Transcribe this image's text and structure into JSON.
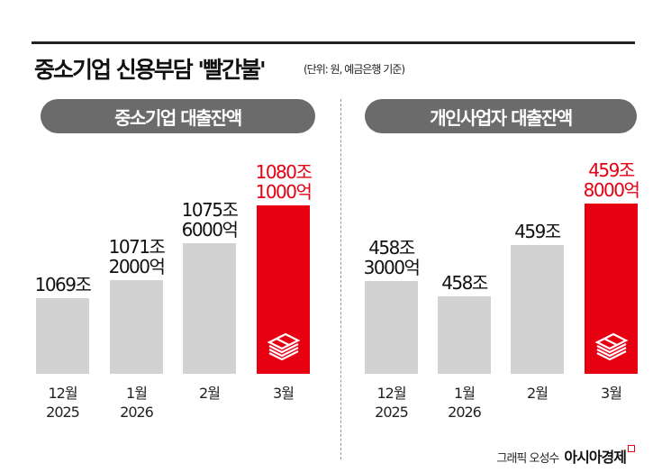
{
  "title": "중소기업 신용부담 '빨간불'",
  "unit_note": "(단위: 원, 예금은행 기준)",
  "footer": {
    "credit": "그래픽 오성수",
    "brand": "아시아경제"
  },
  "colors": {
    "highlight": "#e60012",
    "bar": "#d2d2d2",
    "pill": "#6b6b6b"
  },
  "chart_data": [
    {
      "type": "bar",
      "title": "중소기업 대출잔액",
      "categories": [
        "12월\n2025",
        "1월\n2026",
        "2월",
        "3월"
      ],
      "values": [
        1069,
        1071.2,
        1075.6,
        1080.1
      ],
      "value_labels": [
        "1069조",
        "1071조\n2000억",
        "1075조\n6000억",
        "1080조\n1000억"
      ],
      "highlight_index": 3,
      "highlight_icon": "money-stack-icon",
      "ylim": [
        1060,
        1081
      ]
    },
    {
      "type": "bar",
      "title": "개인사업자 대출잔액",
      "categories": [
        "12월\n2025",
        "1월\n2026",
        "2월",
        "3월"
      ],
      "values": [
        458.3,
        458,
        459,
        459.8
      ],
      "value_labels": [
        "458조\n3000억",
        "458조",
        "459조",
        "459조\n8000억"
      ],
      "highlight_index": 3,
      "highlight_icon": "money-stack-icon",
      "ylim": [
        456.5,
        459.9
      ]
    }
  ]
}
